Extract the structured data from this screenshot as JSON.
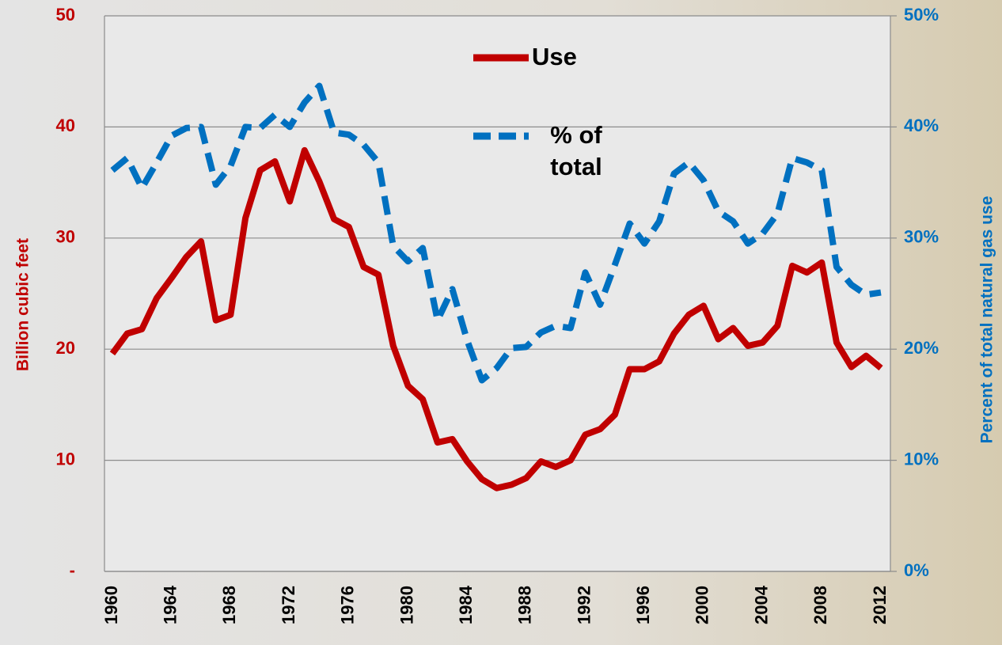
{
  "chart_data": {
    "type": "line",
    "y_label": "Billion cubic feet",
    "y2_label": "Percent of total natural gas use",
    "categories": [
      "1960",
      null,
      null,
      null,
      "1964",
      null,
      null,
      null,
      "1968",
      null,
      null,
      null,
      "1972",
      null,
      null,
      null,
      "1976",
      null,
      null,
      null,
      "1980",
      null,
      null,
      null,
      "1984",
      null,
      null,
      null,
      "1988",
      null,
      null,
      null,
      "1992",
      null,
      null,
      null,
      "1996",
      null,
      null,
      null,
      "2000",
      null,
      null,
      null,
      "2004",
      null,
      null,
      null,
      "2008",
      null,
      null,
      null,
      "2012"
    ],
    "series": [
      {
        "name": "Use",
        "color": "#c00000",
        "dash": false,
        "axis": "y",
        "values": [
          19.6,
          21.4,
          21.8,
          24.6,
          26.4,
          28.3,
          29.7,
          22.6,
          23.1,
          31.8,
          36.1,
          36.9,
          33.3,
          37.9,
          35.1,
          31.7,
          31.0,
          27.4,
          26.7,
          20.3,
          16.7,
          15.5,
          11.6,
          11.9,
          9.9,
          8.3,
          7.5,
          7.8,
          8.4,
          9.9,
          9.4,
          10.0,
          12.3,
          12.8,
          14.1,
          18.2,
          18.2,
          18.9,
          21.4,
          23.1,
          23.9,
          20.9,
          21.9,
          20.3,
          20.6,
          22.1,
          27.5,
          26.9,
          27.8,
          20.6,
          18.4,
          19.4,
          18.3
        ]
      },
      {
        "name": "% of total",
        "color": "#0070c0",
        "dash": true,
        "axis": "y2",
        "values": [
          36.1,
          37.2,
          34.5,
          36.8,
          39.2,
          39.9,
          40.0,
          34.8,
          36.5,
          40.0,
          39.9,
          41.1,
          40.0,
          42.2,
          43.7,
          39.5,
          39.3,
          38.4,
          36.8,
          29.3,
          27.9,
          29.1,
          22.6,
          25.4,
          20.8,
          17.2,
          18.3,
          20.1,
          20.2,
          21.5,
          22.1,
          21.9,
          26.9,
          24.0,
          27.6,
          31.3,
          29.5,
          31.5,
          35.8,
          36.8,
          35.2,
          32.4,
          31.5,
          29.5,
          30.4,
          32.2,
          37.2,
          36.8,
          36.1,
          27.4,
          25.8,
          24.9,
          25.1
        ]
      }
    ],
    "ylim": [
      0,
      50
    ],
    "yticks": [
      {
        "value": 0,
        "label": "-"
      },
      10,
      20,
      30,
      40,
      50
    ],
    "y2lim": [
      0,
      50
    ],
    "y2ticks": [
      {
        "value": 0,
        "label": "0%"
      },
      {
        "value": 10,
        "label": "10%"
      },
      {
        "value": 20,
        "label": "20%"
      },
      {
        "value": 30,
        "label": "30%"
      },
      {
        "value": 40,
        "label": "40%"
      },
      {
        "value": 50,
        "label": "50%"
      }
    ],
    "grid": true,
    "y_color": "#c00000",
    "y2_color": "#0070c0"
  }
}
